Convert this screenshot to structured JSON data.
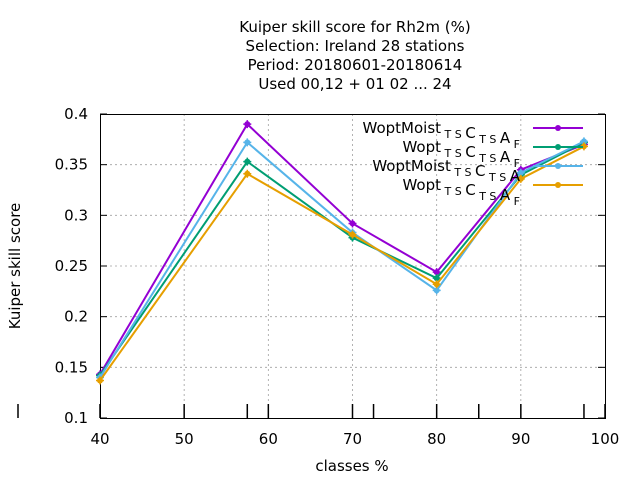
{
  "chart_data": {
    "type": "line",
    "title": [
      "Kuiper skill score  for Rh2m (%)",
      "Selection: Ireland     28 stations",
      "Period: 20180601-20180614",
      "Used  00,12  + 01 02 ... 24"
    ],
    "xlabel": "classes %",
    "ylabel": "Kuiper skill score",
    "xlim": [
      40,
      100
    ],
    "ylim": [
      0.1,
      0.4
    ],
    "xticks": [
      "40",
      "50",
      "60",
      "70",
      "80",
      "90",
      "100"
    ],
    "yticks": [
      "0.1",
      "0.15",
      "0.2",
      "0.25",
      "0.3",
      "0.35",
      "0.4"
    ],
    "x": [
      40,
      57.5,
      70,
      80,
      90,
      97.5
    ],
    "series": [
      {
        "name": "WoptMoist",
        "subscript": "T S",
        "name_mid": "C",
        "subscript2": "T S",
        "name_end": "A",
        "subscript3": "F",
        "color": "#9400d3",
        "values": [
          0.143,
          0.39,
          0.292,
          0.244,
          0.345,
          0.37
        ]
      },
      {
        "name": "Wopt",
        "subscript": "T S",
        "name_mid": "C",
        "subscript2": "T S",
        "name_end": "A",
        "subscript3": "F",
        "color": "#009e73",
        "values": [
          0.142,
          0.353,
          0.278,
          0.238,
          0.34,
          0.372
        ]
      },
      {
        "name": "WoptMoist",
        "subscript": "T S",
        "name_mid": "C",
        "subscript2": "T S",
        "name_end": "A",
        "subscript3": "",
        "color": "#56b4e9",
        "values": [
          0.14,
          0.372,
          0.283,
          0.226,
          0.342,
          0.373
        ]
      },
      {
        "name": "Wopt",
        "subscript": "T S",
        "name_mid": "C",
        "subscript2": "T S",
        "name_end": "A",
        "subscript3": "F",
        "color": "#e69f00",
        "values": [
          0.137,
          0.341,
          0.281,
          0.232,
          0.336,
          0.368
        ]
      }
    ],
    "legend_position": "top-right",
    "grid": true
  }
}
